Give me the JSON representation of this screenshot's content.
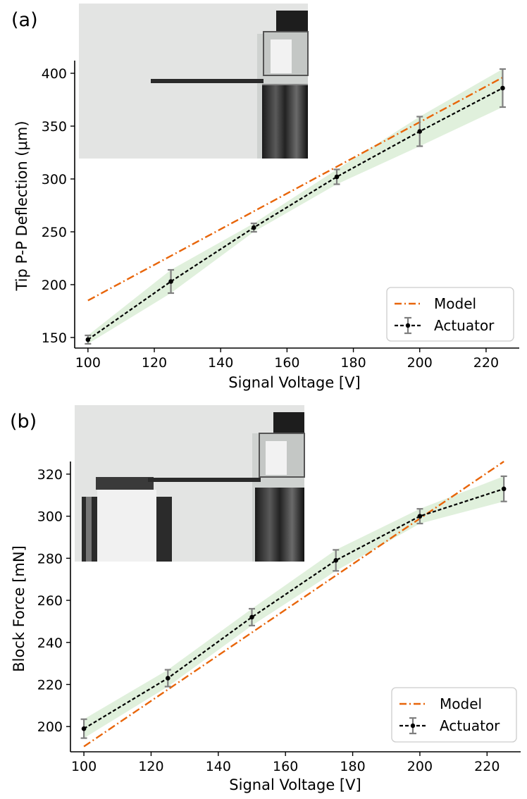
{
  "colors": {
    "model": "#e8650a",
    "actuator": "#000000",
    "errorbar": "#7f7f7f",
    "band": "#d6ebd0"
  },
  "chart_data": [
    {
      "type": "line",
      "panel_label": "(a)",
      "xlabel": "Signal Voltage [V]",
      "ylabel": "Tip P-P Deflection (μm)",
      "xlim": [
        96,
        230
      ],
      "ylim": [
        140,
        412
      ],
      "xticks": [
        100,
        120,
        140,
        160,
        180,
        200,
        220
      ],
      "yticks": [
        150,
        200,
        250,
        300,
        350,
        400
      ],
      "legend": {
        "position": "bottom-right",
        "entries": [
          "Model",
          "Actuator"
        ]
      },
      "series": [
        {
          "name": "Model",
          "style": "dash-dot",
          "x": [
            100,
            225
          ],
          "values": [
            185,
            396
          ]
        },
        {
          "name": "Actuator",
          "style": "dashed-with-markers",
          "x": [
            100,
            125,
            150,
            175,
            200,
            225
          ],
          "values": [
            148,
            203,
            254,
            302,
            345,
            386
          ],
          "errors": [
            4,
            11,
            4,
            7,
            14,
            18
          ]
        }
      ],
      "band": {
        "x": [
          100,
          125,
          150,
          175,
          200,
          225
        ],
        "lower": [
          144,
          192,
          250,
          295,
          331,
          368
        ],
        "upper": [
          152,
          214,
          258,
          309,
          359,
          404
        ]
      },
      "inset": "cantilever-photo-free"
    },
    {
      "type": "line",
      "panel_label": "(b)",
      "xlabel": "Signal Voltage [V]",
      "ylabel": "Block Force [mN]",
      "xlim": [
        96,
        230
      ],
      "ylim": [
        188,
        326
      ],
      "xticks": [
        100,
        120,
        140,
        160,
        180,
        200,
        220
      ],
      "yticks": [
        200,
        220,
        240,
        260,
        280,
        300,
        320
      ],
      "legend": {
        "position": "bottom-right",
        "entries": [
          "Model",
          "Actuator"
        ]
      },
      "series": [
        {
          "name": "Model",
          "style": "dash-dot",
          "x": [
            100,
            225
          ],
          "values": [
            190.5,
            326
          ]
        },
        {
          "name": "Actuator",
          "style": "dashed-with-markers",
          "x": [
            100,
            125,
            150,
            175,
            200,
            225
          ],
          "values": [
            199,
            223,
            252,
            279,
            300,
            313
          ],
          "errors": [
            4.5,
            4,
            4,
            5,
            3.5,
            6
          ]
        }
      ],
      "band": {
        "x": [
          100,
          125,
          150,
          175,
          200,
          225
        ],
        "lower": [
          194.5,
          219,
          248,
          274,
          296.5,
          307
        ],
        "upper": [
          203.5,
          227,
          256,
          284,
          303.5,
          319
        ]
      },
      "inset": "cantilever-photo-blocked"
    }
  ]
}
